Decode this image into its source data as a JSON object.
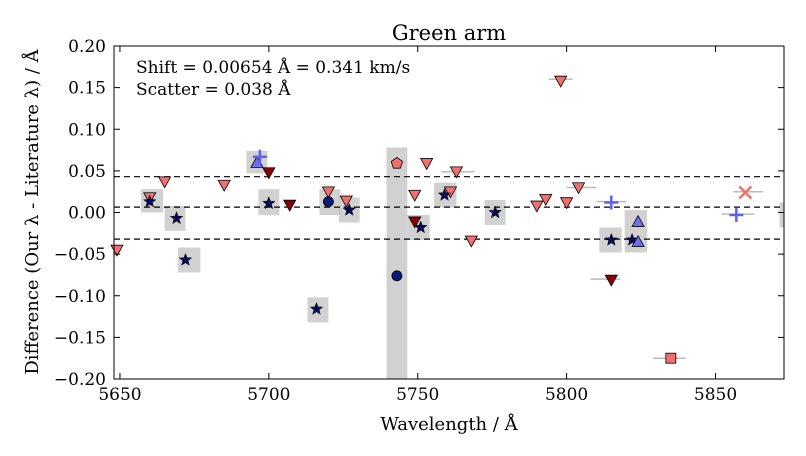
{
  "chart_data": {
    "type": "scatter",
    "title": "Green arm",
    "xlabel": "Wavelength / Å",
    "ylabel": "Difference (Our λ - Literature λ) / Å",
    "xlim": [
      5648,
      5873
    ],
    "ylim": [
      -0.2,
      0.2
    ],
    "xticks": [
      5650,
      5700,
      5750,
      5800,
      5850
    ],
    "yticks": [
      -0.2,
      -0.15,
      -0.1,
      -0.05,
      0.0,
      0.05,
      0.1,
      0.15,
      0.2
    ],
    "annotations": [
      "Shift = 0.00654 Å = 0.341 km/s",
      "Scatter = 0.038 Å"
    ],
    "hlines": [
      {
        "y": 0.043,
        "style": "dashed"
      },
      {
        "y": 0.0065,
        "style": "dashed"
      },
      {
        "y": -0.032,
        "style": "dashed"
      }
    ],
    "error_boxes": [
      {
        "x0": 5657.0,
        "x1": 5664.5,
        "y0": 0.0,
        "y1": 0.028
      },
      {
        "x0": 5665.0,
        "x1": 5672.0,
        "y0": -0.022,
        "y1": 0.008
      },
      {
        "x0": 5669.5,
        "x1": 5677.0,
        "y0": -0.072,
        "y1": -0.042
      },
      {
        "x0": 5692.5,
        "x1": 5699.5,
        "y0": 0.047,
        "y1": 0.074
      },
      {
        "x0": 5696.5,
        "x1": 5703.5,
        "y0": -0.003,
        "y1": 0.028
      },
      {
        "x0": 5713.0,
        "x1": 5720.0,
        "y0": -0.132,
        "y1": -0.102
      },
      {
        "x0": 5717.0,
        "x1": 5724.0,
        "y0": -0.003,
        "y1": 0.028
      },
      {
        "x0": 5723.5,
        "x1": 5730.5,
        "y0": -0.012,
        "y1": 0.018
      },
      {
        "x0": 5739.5,
        "x1": 5746.5,
        "y0": -0.2,
        "y1": 0.078
      },
      {
        "x0": 5746.5,
        "x1": 5754.0,
        "y0": -0.033,
        "y1": -0.003
      },
      {
        "x0": 5755.5,
        "x1": 5763.0,
        "y0": 0.006,
        "y1": 0.036
      },
      {
        "x0": 5772.5,
        "x1": 5779.5,
        "y0": -0.015,
        "y1": 0.015
      },
      {
        "x0": 5811.0,
        "x1": 5818.5,
        "y0": -0.048,
        "y1": -0.018
      },
      {
        "x0": 5819.5,
        "x1": 5827.0,
        "y0": -0.048,
        "y1": 0.003
      },
      {
        "x0": 5871.5,
        "x1": 5873.0,
        "y0": -0.018,
        "y1": 0.012
      }
    ],
    "hlines_short": [
      {
        "x0": 5758.0,
        "x1": 5769.0,
        "y": 0.049
      },
      {
        "x0": 5800.0,
        "x1": 5810.0,
        "y": 0.03
      },
      {
        "x0": 5810.0,
        "x1": 5820.0,
        "y": 0.013
      },
      {
        "x0": 5808.0,
        "x1": 5818.0,
        "y": -0.08
      },
      {
        "x0": 5829.0,
        "x1": 5840.0,
        "y": -0.175
      },
      {
        "x0": 5852.0,
        "x1": 5863.0,
        "y": -0.002
      },
      {
        "x0": 5856.0,
        "x1": 5866.0,
        "y": 0.025
      },
      {
        "x0": 5794.0,
        "x1": 5802.0,
        "y": 0.16
      }
    ],
    "series": [
      {
        "name": "light-red triangles",
        "marker": "triangle-down",
        "color": "#f07070",
        "x": [
          5649,
          5660,
          5665,
          5685,
          5720,
          5726,
          5749,
          5753,
          5761,
          5763,
          5768,
          5790,
          5793,
          5798,
          5800,
          5804
        ],
        "y": [
          -0.045,
          0.018,
          0.037,
          0.033,
          0.025,
          0.014,
          0.021,
          0.059,
          0.025,
          0.049,
          -0.034,
          0.008,
          0.016,
          0.158,
          0.012,
          0.03
        ]
      },
      {
        "name": "dark-red triangles",
        "marker": "triangle-down",
        "color": "#8b0000",
        "x": [
          5700,
          5707,
          5749,
          5815
        ],
        "y": [
          0.048,
          0.009,
          -0.011,
          -0.081
        ]
      },
      {
        "name": "navy stars",
        "marker": "star",
        "color": "#0a0a50",
        "x": [
          5660,
          5669,
          5672,
          5700,
          5716,
          5727,
          5751,
          5759,
          5776,
          5815,
          5822
        ],
        "y": [
          0.013,
          -0.007,
          -0.057,
          0.011,
          -0.116,
          0.003,
          -0.018,
          0.021,
          0.0,
          -0.033,
          -0.033
        ]
      },
      {
        "name": "blue circles",
        "marker": "circle",
        "color": "#0a1a7a",
        "x": [
          5720,
          5743
        ],
        "y": [
          0.013,
          -0.076
        ]
      },
      {
        "name": "pink pentagon",
        "marker": "pentagon",
        "color": "#f07070",
        "x": [
          5743
        ],
        "y": [
          0.059
        ]
      },
      {
        "name": "blue triangles",
        "marker": "triangle-up",
        "color": "#7070ee",
        "x": [
          5696,
          5824,
          5824
        ],
        "y": [
          0.06,
          -0.011,
          -0.035
        ]
      },
      {
        "name": "blue plus",
        "marker": "plus",
        "color": "#6060ee",
        "x": [
          5697,
          5815,
          5857
        ],
        "y": [
          0.067,
          0.012,
          -0.003
        ]
      },
      {
        "name": "red square",
        "marker": "square",
        "color": "#f07070",
        "x": [
          5835
        ],
        "y": [
          -0.175
        ]
      },
      {
        "name": "red x",
        "marker": "x",
        "color": "#f07070",
        "x": [
          5860
        ],
        "y": [
          0.024
        ]
      }
    ]
  }
}
